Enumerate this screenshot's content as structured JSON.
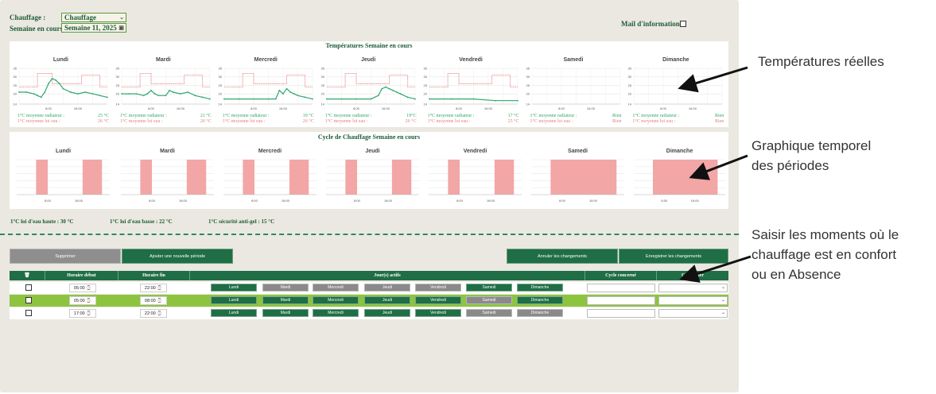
{
  "header": {
    "heating_label": "Chauffage :",
    "heating_value": "Chauffage",
    "week_label": "Semaine en cours :",
    "week_value": "Semaine 11, 2025",
    "mail_label": "Mail d'information :"
  },
  "colors": {
    "accent": "#1f6e45",
    "green_line": "#2fa86e",
    "red_line": "#e87c7c",
    "red_fill": "#f2a6a6",
    "row_highlight": "#8cc43f"
  },
  "temps_panel": {
    "title": "Températures Semaine en cours",
    "days": [
      {
        "name": "Lundi",
        "stat1": "1°C moyenne radiateur :",
        "val1": "25 °C",
        "stat2": "1°C moyenne loi eau :",
        "val2": "26 °C"
      },
      {
        "name": "Mardi",
        "stat1": "1°C moyenne radiateur :",
        "val1": "21 °C",
        "stat2": "1°C moyenne loi eau :",
        "val2": "26 °C"
      },
      {
        "name": "Mercredi",
        "stat1": "1°C moyenne radiateur :",
        "val1": "19 °C",
        "stat2": "1°C moyenne loi eau :",
        "val2": "26 °C"
      },
      {
        "name": "Jeudi",
        "stat1": "1°C moyenne radiateur :",
        "val1": "19°C",
        "stat2": "1°C moyenne loi eau :",
        "val2": "26 °C"
      },
      {
        "name": "Vendredi",
        "stat1": "1°C moyenne radiateur :",
        "val1": "17 °C",
        "stat2": "1°C moyenne loi eau :",
        "val2": "25 °C"
      },
      {
        "name": "Samedi",
        "stat1": "1°C moyenne radiateur :",
        "val1": "Rien",
        "stat2": "1°C moyenne loi eau :",
        "val2": "Rien"
      },
      {
        "name": "Dimanche",
        "stat1": "1°C moyenne radiateur :",
        "val1": "Rien",
        "stat2": "1°C moyenne loi eau :",
        "val2": "Rien"
      }
    ]
  },
  "cycle_panel": {
    "title": "Cycle de Chauffage Semaine en cours",
    "days": [
      "Lundi",
      "Mardi",
      "Mercredi",
      "Jeudi",
      "Vendredi",
      "Samedi",
      "Dimanche"
    ]
  },
  "footer_info": {
    "high": "1°C loi d'eau haute : 30 °C",
    "low": "1°C loi d'eau basse : 22 °C",
    "frost": "1°C sécurité anti-gel : 15 °C"
  },
  "actions": {
    "delete": "Supprimer",
    "add": "Ajouter une nouvelle période",
    "cancel": "Annuler les changements",
    "save": "Enregistrer les changements"
  },
  "table": {
    "headers": {
      "start": "Horaire début",
      "end": "Horaire fin",
      "days": "Jour(s) actifs",
      "cycle": "Cycle concerné",
      "calendar": "Calendrier"
    },
    "rows": [
      {
        "start": "05:00",
        "end": "22:00",
        "active": [
          true,
          false,
          false,
          false,
          false,
          true,
          true
        ]
      },
      {
        "start": "05:00",
        "end": "08:00",
        "active": [
          true,
          true,
          true,
          true,
          true,
          false,
          true
        ]
      },
      {
        "start": "17:00",
        "end": "22:00",
        "active": [
          true,
          true,
          true,
          true,
          true,
          false,
          false
        ]
      }
    ]
  },
  "weekday_labels": [
    "Lundi",
    "Mardi",
    "Mercredi",
    "Jeudi",
    "Vendredi",
    "Samedi",
    "Dimanche"
  ],
  "chart_data": [
    {
      "type": "line",
      "title": "Températures Semaine en cours",
      "ylim": [
        14,
        35
      ],
      "yticks": [
        "35",
        "30",
        "25",
        "20",
        "14"
      ],
      "xticks": [
        "8:00",
        "16:00"
      ],
      "xlim": [
        0,
        24
      ],
      "facets": [
        "Lundi",
        "Mardi",
        "Mercredi",
        "Jeudi",
        "Vendredi",
        "Samedi",
        "Dimanche"
      ],
      "series_radiateur": [
        [
          [
            0,
            21
          ],
          [
            2,
            21
          ],
          [
            4,
            20
          ],
          [
            5,
            19
          ],
          [
            6,
            18
          ],
          [
            7,
            21
          ],
          [
            8,
            26
          ],
          [
            9,
            29
          ],
          [
            10,
            28
          ],
          [
            11,
            26
          ],
          [
            12,
            23
          ],
          [
            14,
            21
          ],
          [
            16,
            20
          ],
          [
            18,
            21
          ],
          [
            20,
            20
          ],
          [
            22,
            19
          ],
          [
            24,
            18
          ]
        ],
        [
          [
            0,
            20
          ],
          [
            2,
            20
          ],
          [
            4,
            20
          ],
          [
            6,
            19
          ],
          [
            7,
            20
          ],
          [
            8,
            22
          ],
          [
            9,
            20
          ],
          [
            10,
            19
          ],
          [
            12,
            19
          ],
          [
            13,
            22
          ],
          [
            14,
            21
          ],
          [
            16,
            20
          ],
          [
            18,
            21
          ],
          [
            20,
            19
          ],
          [
            22,
            18
          ],
          [
            24,
            17
          ]
        ],
        [
          [
            0,
            17
          ],
          [
            4,
            17
          ],
          [
            8,
            17
          ],
          [
            12,
            17
          ],
          [
            14,
            17
          ],
          [
            15,
            22
          ],
          [
            16,
            20
          ],
          [
            17,
            23
          ],
          [
            18,
            21
          ],
          [
            19,
            20
          ],
          [
            20,
            19
          ],
          [
            22,
            18
          ],
          [
            24,
            17
          ]
        ],
        [
          [
            0,
            17
          ],
          [
            4,
            17
          ],
          [
            8,
            17
          ],
          [
            12,
            17
          ],
          [
            14,
            19
          ],
          [
            15,
            23
          ],
          [
            16,
            24
          ],
          [
            17,
            23
          ],
          [
            18,
            22
          ],
          [
            19,
            21
          ],
          [
            20,
            20
          ],
          [
            22,
            18
          ],
          [
            24,
            17
          ]
        ],
        [
          [
            0,
            17
          ],
          [
            6,
            17
          ],
          [
            12,
            17
          ],
          [
            18,
            16
          ],
          [
            24,
            16
          ]
        ],
        [],
        []
      ],
      "series_loi_eau": [
        [
          [
            0,
            24
          ],
          [
            5,
            24
          ],
          [
            5,
            32
          ],
          [
            9,
            32
          ],
          [
            9,
            26
          ],
          [
            17,
            26
          ],
          [
            17,
            31
          ],
          [
            22,
            31
          ],
          [
            22,
            24
          ],
          [
            24,
            24
          ]
        ],
        [
          [
            0,
            24
          ],
          [
            5,
            24
          ],
          [
            5,
            32
          ],
          [
            8,
            32
          ],
          [
            8,
            26
          ],
          [
            17,
            26
          ],
          [
            17,
            31
          ],
          [
            22,
            31
          ],
          [
            22,
            24
          ],
          [
            24,
            24
          ]
        ],
        [
          [
            0,
            24
          ],
          [
            5,
            24
          ],
          [
            5,
            32
          ],
          [
            8,
            32
          ],
          [
            8,
            26
          ],
          [
            17,
            26
          ],
          [
            17,
            31
          ],
          [
            22,
            31
          ],
          [
            22,
            24
          ],
          [
            24,
            24
          ]
        ],
        [
          [
            0,
            24
          ],
          [
            5,
            24
          ],
          [
            5,
            32
          ],
          [
            8,
            32
          ],
          [
            8,
            26
          ],
          [
            17,
            26
          ],
          [
            17,
            31
          ],
          [
            22,
            31
          ],
          [
            22,
            24
          ],
          [
            24,
            24
          ]
        ],
        [
          [
            0,
            24
          ],
          [
            5,
            24
          ],
          [
            5,
            32
          ],
          [
            8,
            32
          ],
          [
            8,
            26
          ],
          [
            17,
            26
          ],
          [
            17,
            31
          ],
          [
            22,
            31
          ],
          [
            22,
            24
          ],
          [
            24,
            24
          ]
        ],
        [],
        []
      ]
    },
    {
      "type": "bar",
      "title": "Cycle de Chauffage Semaine en cours",
      "xticks": [
        "8:00",
        "16:00"
      ],
      "xlim": [
        0,
        24
      ],
      "facets": [
        "Lundi",
        "Mardi",
        "Mercredi",
        "Jeudi",
        "Vendredi",
        "Samedi",
        "Dimanche"
      ],
      "periods": [
        [
          [
            5,
            8
          ],
          [
            17,
            22
          ]
        ],
        [
          [
            5,
            8
          ],
          [
            17,
            22
          ]
        ],
        [
          [
            5,
            8
          ],
          [
            17,
            22
          ]
        ],
        [
          [
            5,
            8
          ],
          [
            17,
            22
          ]
        ],
        [
          [
            5,
            8
          ],
          [
            17,
            22
          ]
        ],
        [
          [
            5,
            22
          ]
        ],
        [
          [
            5,
            22
          ]
        ]
      ]
    }
  ],
  "annotations": {
    "real_temps": "Températures réelles",
    "timeline_line1": "Graphique temporel",
    "timeline_line2": "des périodes",
    "input_line1": "Saisir les moments où le",
    "input_line2": "chauffage est en confort",
    "input_line3": "ou en Absence"
  }
}
